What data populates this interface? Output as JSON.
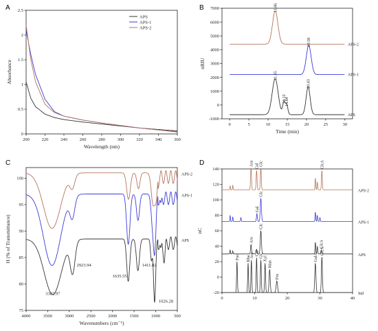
{
  "colors": {
    "aps": "#333333",
    "aps1": "#3a3ad8",
    "aps2": "#b5735a"
  },
  "panels": {
    "A": {
      "letter": "A"
    },
    "B": {
      "letter": "B"
    },
    "C": {
      "letter": "C"
    },
    "D": {
      "letter": "D"
    }
  },
  "chart_data": [
    {
      "panel": "A",
      "type": "line",
      "xlabel": "Wavelength (nm)",
      "ylabel": "Absorbance",
      "xlim": [
        200,
        360
      ],
      "ylim": [
        0,
        2.5
      ],
      "xticks": [
        "200",
        "220",
        "240",
        "260",
        "280",
        "300",
        "320",
        "340",
        "360"
      ],
      "yticks": [
        "0",
        "0.5",
        "1",
        "1.5",
        "2",
        "2.5"
      ],
      "legend_position": "top-right",
      "series": [
        {
          "name": "APS",
          "x": [
            200,
            205,
            210,
            220,
            230,
            240,
            260,
            280,
            300,
            320,
            340,
            360
          ],
          "y": [
            1.05,
            0.72,
            0.55,
            0.4,
            0.33,
            0.29,
            0.24,
            0.2,
            0.16,
            0.12,
            0.09,
            0.06
          ]
        },
        {
          "name": "APS-1",
          "x": [
            200,
            205,
            210,
            220,
            230,
            240,
            260,
            280,
            300,
            320,
            340,
            360
          ],
          "y": [
            2.1,
            1.6,
            1.2,
            0.7,
            0.45,
            0.36,
            0.28,
            0.22,
            0.17,
            0.12,
            0.08,
            0.04
          ]
        },
        {
          "name": "APS-2",
          "x": [
            200,
            205,
            210,
            220,
            230,
            240,
            260,
            280,
            300,
            320,
            340,
            360
          ],
          "y": [
            2.2,
            1.5,
            1.05,
            0.6,
            0.43,
            0.36,
            0.28,
            0.22,
            0.17,
            0.12,
            0.08,
            0.05
          ]
        }
      ]
    },
    {
      "panel": "B",
      "type": "line",
      "xlabel": "Time (min)",
      "ylabel": "nRIU",
      "xlim": [
        -2,
        32
      ],
      "ylim": [
        -1000,
        7000
      ],
      "xticks": [
        "0",
        "5",
        "10",
        "15",
        "20",
        "25",
        "30"
      ],
      "yticks": [
        "-1000",
        "0",
        "1000",
        "2000",
        "3000",
        "4000",
        "5000",
        "6000",
        "7000"
      ],
      "series": [
        {
          "name": "APS-2",
          "baseline": 4400,
          "label": "APS-2",
          "peaks": [
            {
              "t": 11.86,
              "h": 2400,
              "w": 1.0,
              "label": "11.86"
            }
          ]
        },
        {
          "name": "APS-1",
          "baseline": 2200,
          "label": "APS-1",
          "peaks": [
            {
              "t": 20.58,
              "h": 2100,
              "w": 0.9,
              "label": "20.58"
            }
          ]
        },
        {
          "name": "APS",
          "baseline": -700,
          "label": "APS",
          "peaks": [
            {
              "t": 11.85,
              "h": 2600,
              "w": 1.1,
              "label": "11.85"
            },
            {
              "t": 14.12,
              "h": 900,
              "w": 0.45,
              "label": "14.12"
            },
            {
              "t": 14.84,
              "h": 700,
              "w": 0.45,
              "label": "14.84"
            },
            {
              "t": 20.43,
              "h": 2000,
              "w": 0.75,
              "label": "20.43"
            }
          ]
        }
      ]
    },
    {
      "panel": "C",
      "type": "line",
      "xlabel": "Wavenumbers (cm⁻¹)",
      "ylabel": "H (% of Transmittance)",
      "xlim": [
        4000,
        500
      ],
      "ylim": [
        75,
        102
      ],
      "xticks": [
        "4000",
        "3500",
        "3000",
        "2500",
        "2000",
        "1500",
        "1000",
        "500"
      ],
      "yticks": [
        "75",
        "80",
        "85",
        "90",
        "95",
        "100"
      ],
      "annotations": [
        "3382.97",
        "2923.94",
        "1635.55",
        "1411.82",
        "1026.28"
      ],
      "series": [
        {
          "name": "APS-2",
          "label": "APS-2",
          "base": 101.0,
          "bands": [
            [
              3400,
              10.5,
              280
            ],
            [
              2930,
              2.5,
              80
            ],
            [
              1630,
              5,
              60
            ],
            [
              1400,
              3,
              50
            ],
            [
              1060,
              6,
              60
            ],
            [
              990,
              4,
              40
            ]
          ]
        },
        {
          "name": "APS-1",
          "label": "APS-1",
          "base": 97.0,
          "bands": [
            [
              3400,
              13.5,
              280
            ],
            [
              2930,
              4,
              80
            ],
            [
              1635,
              9.5,
              55
            ],
            [
              1410,
              5,
              50
            ],
            [
              1070,
              6,
              50
            ],
            [
              1020,
              9,
              40
            ],
            [
              880,
              2,
              20
            ]
          ]
        },
        {
          "name": "APS",
          "label": "APS",
          "base": 88.5,
          "bands": [
            [
              3383,
              10.5,
              280
            ],
            [
              2924,
              6,
              80
            ],
            [
              1636,
              8,
              50
            ],
            [
              1412,
              6,
              50
            ],
            [
              1100,
              4,
              30
            ],
            [
              1026,
              12,
              35
            ],
            [
              880,
              2,
              20
            ],
            [
              800,
              3,
              30
            ]
          ]
        }
      ]
    },
    {
      "panel": "D",
      "type": "line",
      "xlabel": "",
      "ylabel": "nC",
      "xlim": [
        0,
        40
      ],
      "ylim": [
        -20,
        140
      ],
      "xticks": [
        "0",
        "10",
        "20",
        "30",
        "40"
      ],
      "yticks": [
        "-20",
        "0",
        "20",
        "40",
        "60",
        "80",
        "100",
        "120",
        "140"
      ],
      "series": [
        {
          "name": "APS-2",
          "label": "APS-2",
          "baseline": 113,
          "peaks": [
            [
              2.5,
              5,
              0.12,
              ""
            ],
            [
              3.3,
              6,
              0.12,
              ""
            ],
            [
              8.9,
              28,
              0.2,
              "Ara"
            ],
            [
              10.6,
              25,
              0.2,
              "Gal"
            ],
            [
              11.9,
              28,
              0.2,
              "Glc"
            ],
            [
              28.6,
              15,
              0.15,
              ""
            ],
            [
              29.2,
              10,
              0.15,
              ""
            ],
            [
              30.6,
              25,
              0.18,
              "GlcA"
            ]
          ]
        },
        {
          "name": "APS-1",
          "label": "APS-1",
          "baseline": 72,
          "peaks": [
            [
              2.5,
              8,
              0.12,
              ""
            ],
            [
              3.3,
              6,
              0.12,
              ""
            ],
            [
              5.8,
              5,
              0.15,
              ""
            ],
            [
              10.7,
              10,
              0.2,
              "Gal"
            ],
            [
              11.9,
              30,
              0.25,
              "Glc"
            ],
            [
              28.6,
              12,
              0.15,
              ""
            ],
            [
              29.2,
              8,
              0.15,
              ""
            ],
            [
              30.0,
              5,
              0.15,
              ""
            ]
          ]
        },
        {
          "name": "APS",
          "label": "APS",
          "baseline": 30,
          "peaks": [
            [
              2.5,
              5,
              0.12,
              ""
            ],
            [
              3.3,
              4,
              0.12,
              ""
            ],
            [
              8.9,
              12,
              0.2,
              "Ara"
            ],
            [
              10.6,
              6,
              0.2,
              ""
            ],
            [
              11.9,
              30,
              0.25,
              "Glc"
            ],
            [
              28.6,
              15,
              0.15,
              ""
            ],
            [
              29.2,
              10,
              0.15,
              ""
            ],
            [
              30.4,
              5,
              0.15,
              "GlcA"
            ]
          ]
        },
        {
          "name": "Std",
          "label": "Std",
          "baseline": -20,
          "peaks": [
            [
              4.6,
              40,
              0.18,
              "Fuc"
            ],
            [
              8.0,
              38,
              0.18,
              "Rha"
            ],
            [
              9.0,
              42,
              0.18,
              "Ara"
            ],
            [
              10.6,
              45,
              0.18,
              "Gal"
            ],
            [
              11.9,
              42,
              0.2,
              "Glc"
            ],
            [
              13.2,
              38,
              0.2,
              "Xyl"
            ],
            [
              14.6,
              30,
              0.25,
              "Man"
            ],
            [
              16.8,
              15,
              0.3,
              "Fru"
            ],
            [
              28.6,
              38,
              0.25,
              "GalA"
            ],
            [
              30.6,
              46,
              0.22,
              "GlcA"
            ]
          ]
        }
      ]
    }
  ]
}
